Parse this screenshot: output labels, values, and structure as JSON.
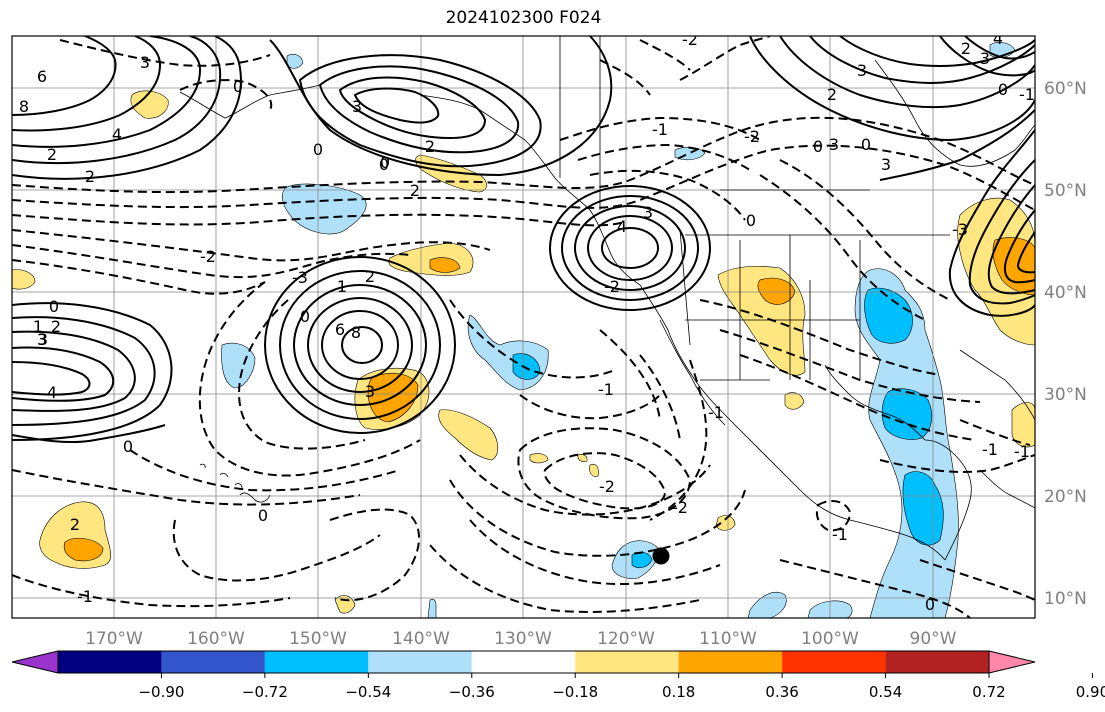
{
  "title": "2024102300 F024",
  "map": {
    "lon_range": [
      -180,
      -80
    ],
    "lat_range": [
      8,
      65
    ],
    "lat_labels": [
      "10°N",
      "20°N",
      "30°N",
      "40°N",
      "50°N",
      "60°N"
    ],
    "lon_labels": [
      "170°W",
      "160°W",
      "150°W",
      "140°W",
      "130°W",
      "120°W",
      "110°W",
      "100°W",
      "90°W"
    ],
    "contour_labels": [
      "6",
      "8",
      "4",
      "3",
      "0",
      "2",
      "2",
      "0",
      "3",
      "0",
      "-2",
      "2",
      "-1",
      "-2",
      "-2",
      "3",
      "4",
      "0",
      "3",
      "3",
      "0",
      "3",
      "2",
      "0",
      "-3",
      "0",
      "2",
      "3",
      "4",
      "-2",
      "8",
      "6",
      "0",
      "-3",
      "2",
      "1",
      "3",
      "3",
      "-1",
      "-1",
      "-2",
      "-2",
      "-1",
      "-1",
      "0",
      "-1",
      "0",
      "-1",
      "2",
      "0",
      "0",
      "2",
      "1",
      "2",
      "3",
      "4",
      "0",
      "-1"
    ],
    "marker": "black-dot"
  },
  "colorbar": {
    "colors": [
      "#9933cc",
      "#000080",
      "#3355cc",
      "#00bfff",
      "#aee0fa",
      "#ffffff",
      "#ffe680",
      "#ffa500",
      "#ff3300",
      "#b22222",
      "#ff88aa"
    ],
    "tick_labels": [
      "−0.90",
      "−0.72",
      "−0.54",
      "−0.36",
      "−0.18",
      "0.18",
      "0.36",
      "0.54",
      "0.72",
      "0.90"
    ],
    "extend": "both"
  }
}
